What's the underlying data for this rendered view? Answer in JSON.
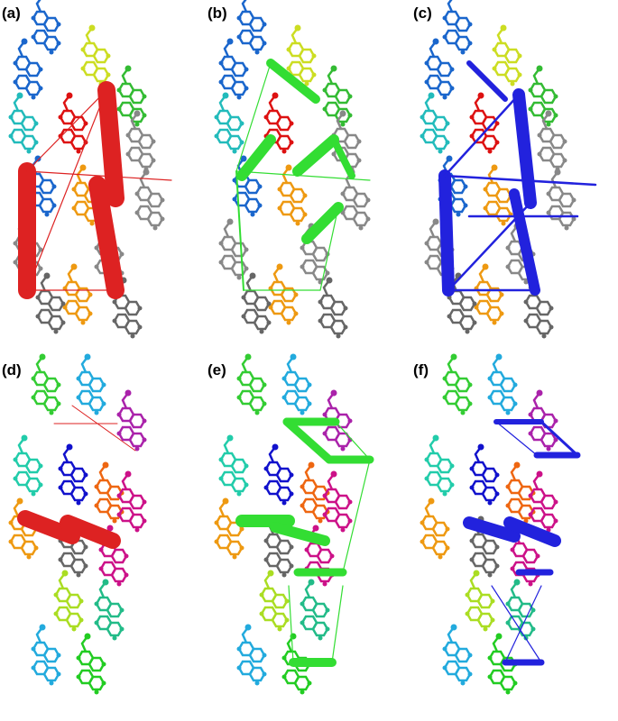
{
  "panels": [
    {
      "label": "(a)"
    },
    {
      "label": "(b)"
    },
    {
      "label": "(c)"
    },
    {
      "label": "(d)"
    },
    {
      "label": "(e)"
    },
    {
      "label": "(f)"
    }
  ]
}
